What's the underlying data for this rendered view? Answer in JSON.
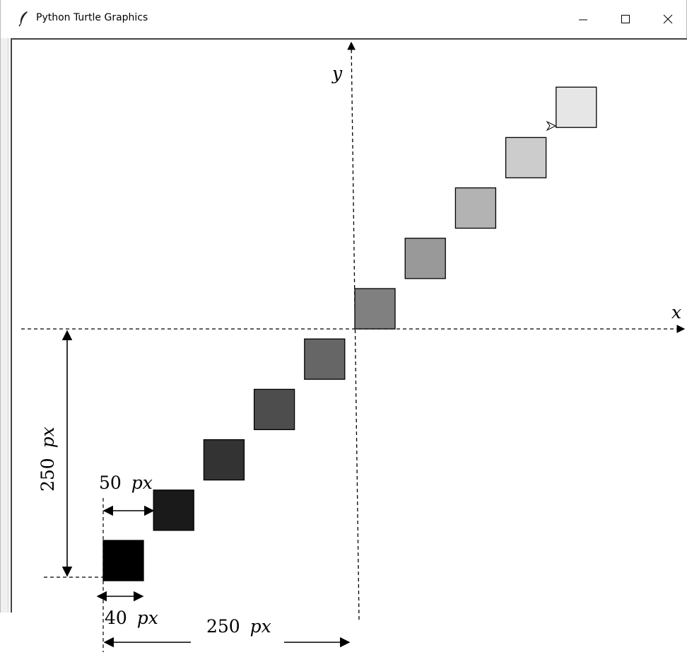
{
  "window": {
    "title": "Python Turtle Graphics",
    "icons": {
      "app": "feather-icon",
      "minimize": "minimize-icon",
      "maximize": "maximize-icon",
      "close": "close-icon"
    }
  },
  "axes": {
    "x_label": "x",
    "y_label": "y"
  },
  "squares": [
    {
      "color": "#000000"
    },
    {
      "color": "#1a1a1a"
    },
    {
      "color": "#333333"
    },
    {
      "color": "#4d4d4d"
    },
    {
      "color": "#666666"
    },
    {
      "color": "#808080"
    },
    {
      "color": "#999999"
    },
    {
      "color": "#b3b3b3"
    },
    {
      "color": "#cccccc"
    },
    {
      "color": "#e6e6e6"
    }
  ],
  "annotations": {
    "vertical_offset": {
      "number": "250",
      "unit": "px"
    },
    "step": {
      "number": "50",
      "unit": "px"
    },
    "square_size": {
      "number": "40",
      "unit": "px"
    },
    "horizontal_offset": {
      "number": "250",
      "unit": "px"
    }
  },
  "turtle": {
    "icon": "turtle-cursor-icon"
  }
}
